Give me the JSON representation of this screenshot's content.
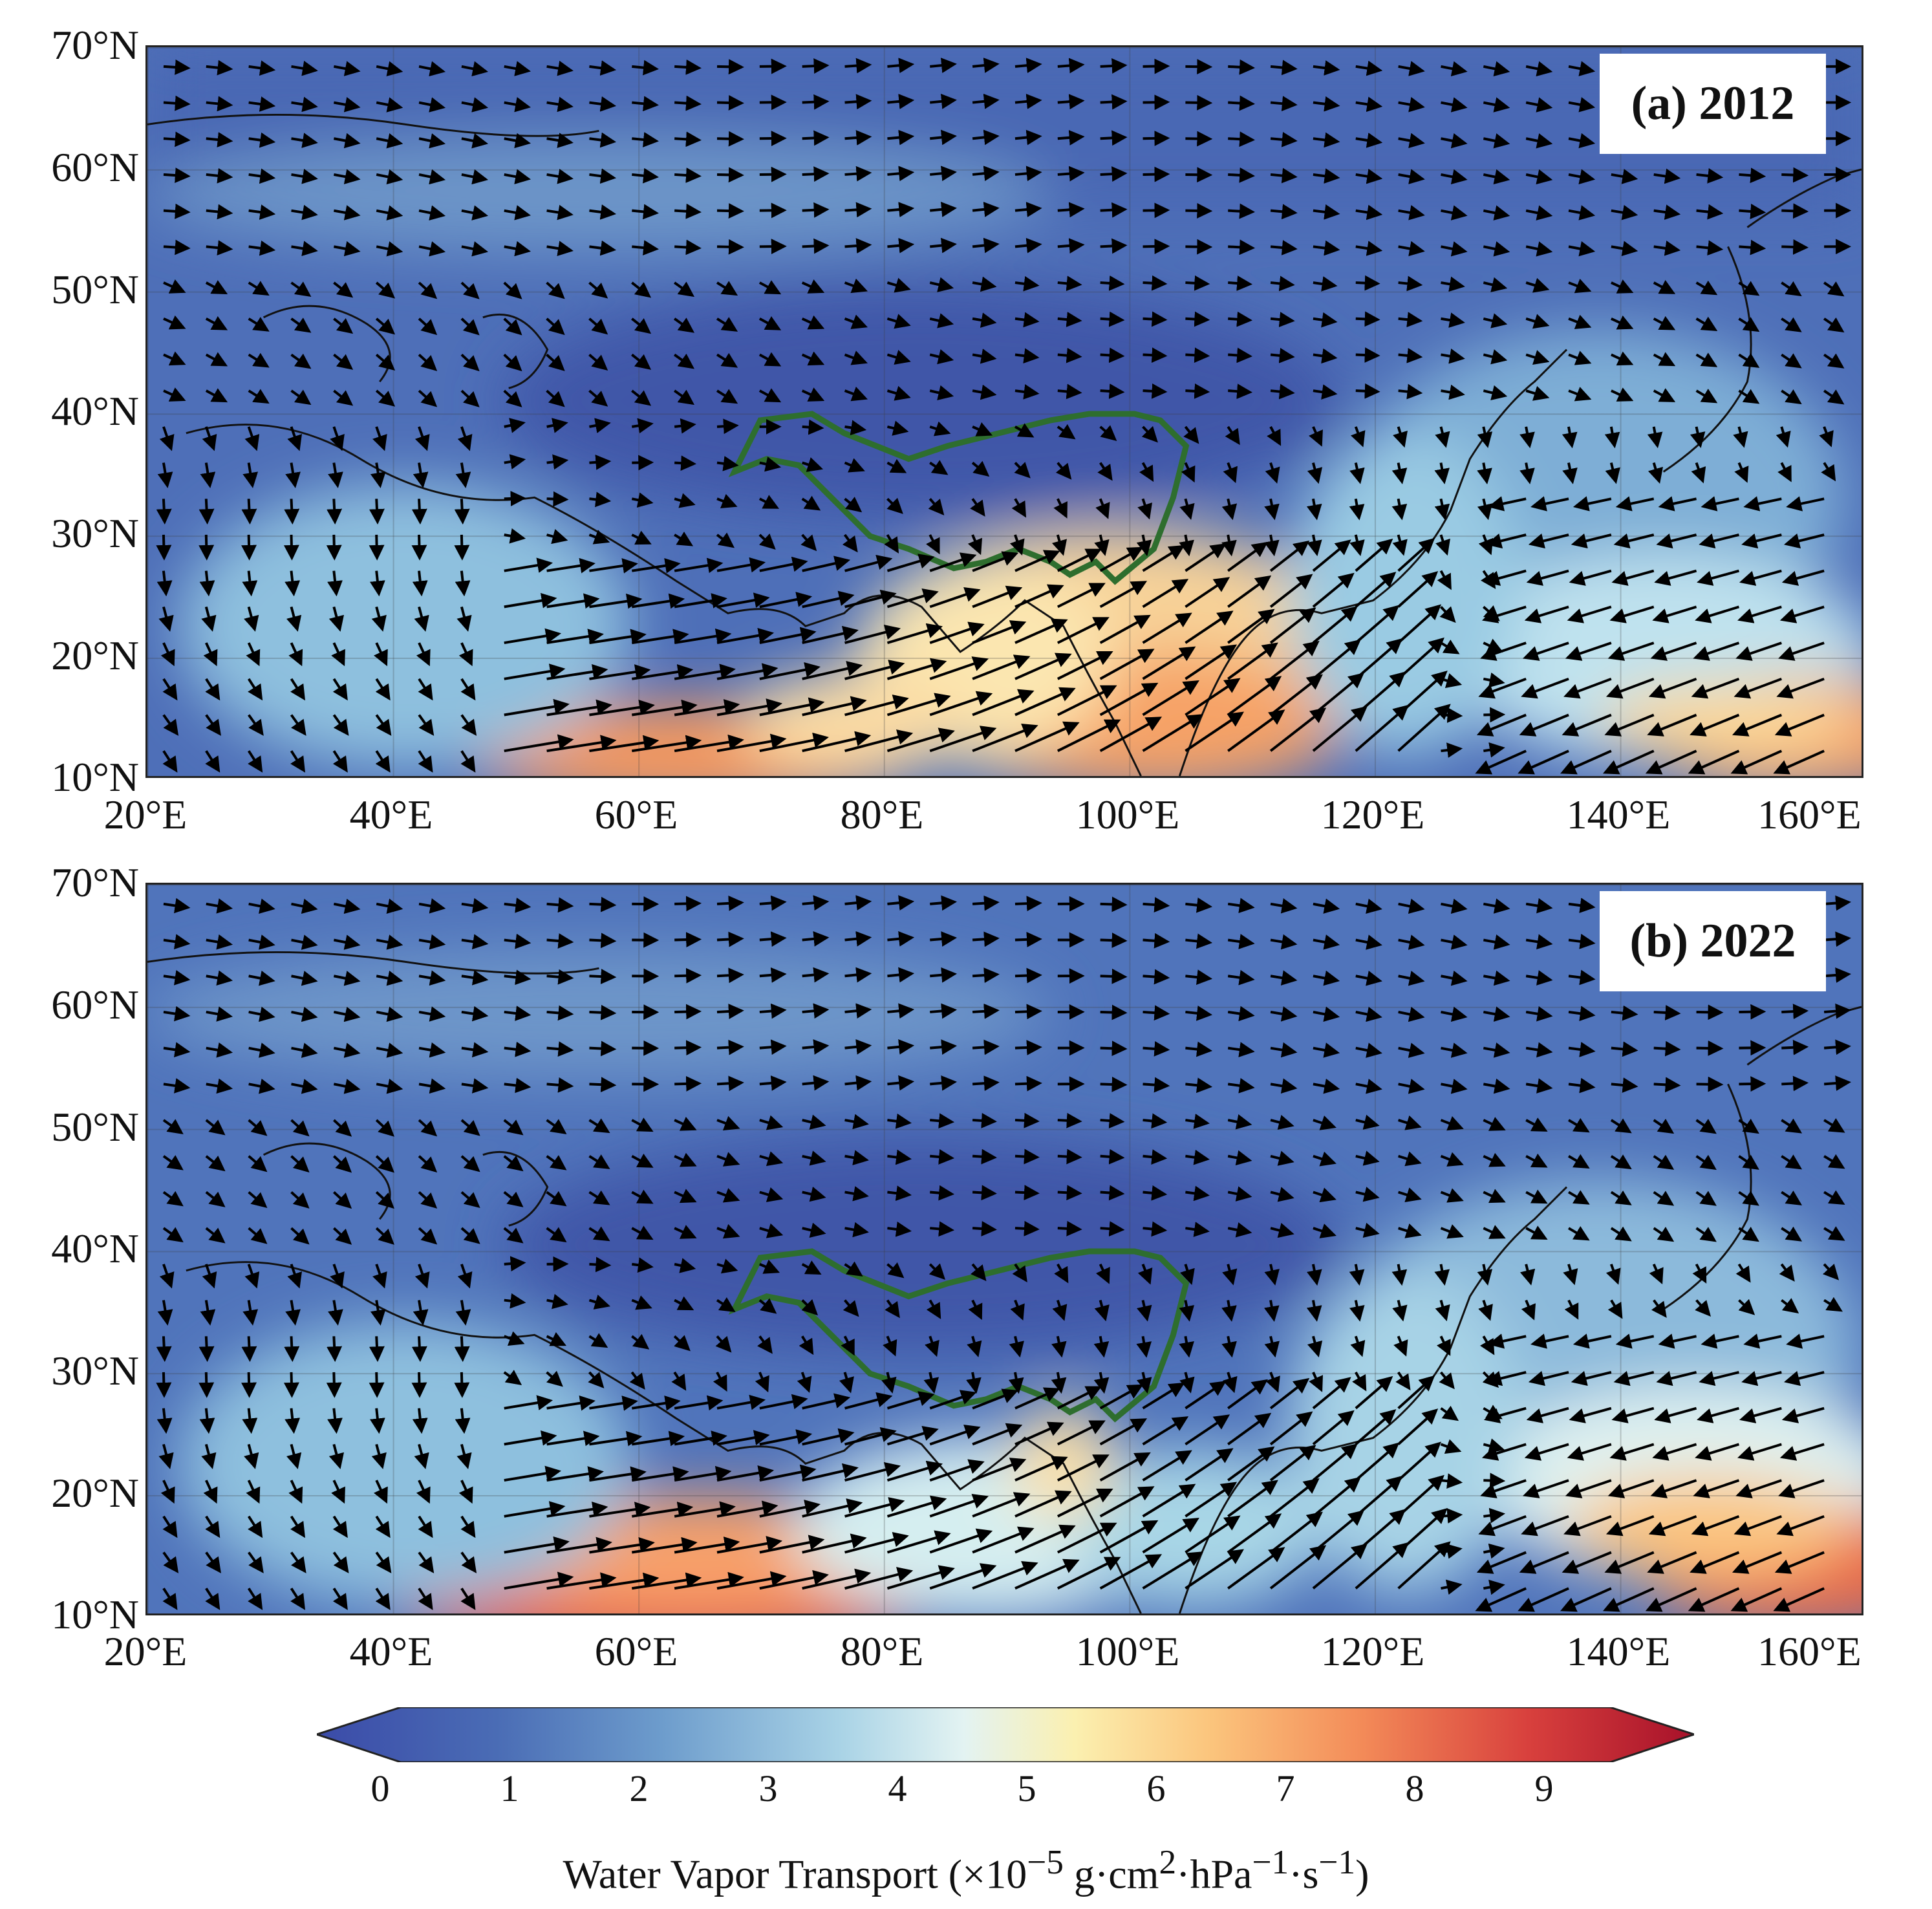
{
  "panels": [
    {
      "id": "a",
      "title": "(a) 2012"
    },
    {
      "id": "b",
      "title": "(b) 2022"
    }
  ],
  "lat_labels": [
    "70°N",
    "60°N",
    "50°N",
    "40°N",
    "30°N",
    "20°N",
    "10°N"
  ],
  "lon_labels": [
    "20°E",
    "40°E",
    "60°E",
    "80°E",
    "100°E",
    "120°E",
    "140°E",
    "160°E"
  ],
  "map_extent": {
    "lon": [
      20,
      160
    ],
    "lat": [
      10,
      70
    ]
  },
  "colorbar": {
    "ticks": [
      "0",
      "1",
      "2",
      "3",
      "4",
      "5",
      "6",
      "7",
      "8",
      "9"
    ],
    "range": [
      0,
      9.5
    ],
    "colors": [
      "#3b4ba8",
      "#5a7ec0",
      "#93c4de",
      "#e6f4f1",
      "#fde79a",
      "#f6935a",
      "#d6323c",
      "#a7112a"
    ],
    "label_main": "Water Vapor Transport (×10",
    "label_exp1": "−5",
    "label_mid": " g·cm",
    "label_exp2": "2",
    "label_mid2": "·hPa",
    "label_exp3": "−1",
    "label_mid3": "·s",
    "label_exp4": "−1",
    "label_end": ")"
  },
  "colors": {
    "plateau_outline": "#2e6e2e",
    "arrow": "#000000",
    "coast": "#111111"
  }
}
